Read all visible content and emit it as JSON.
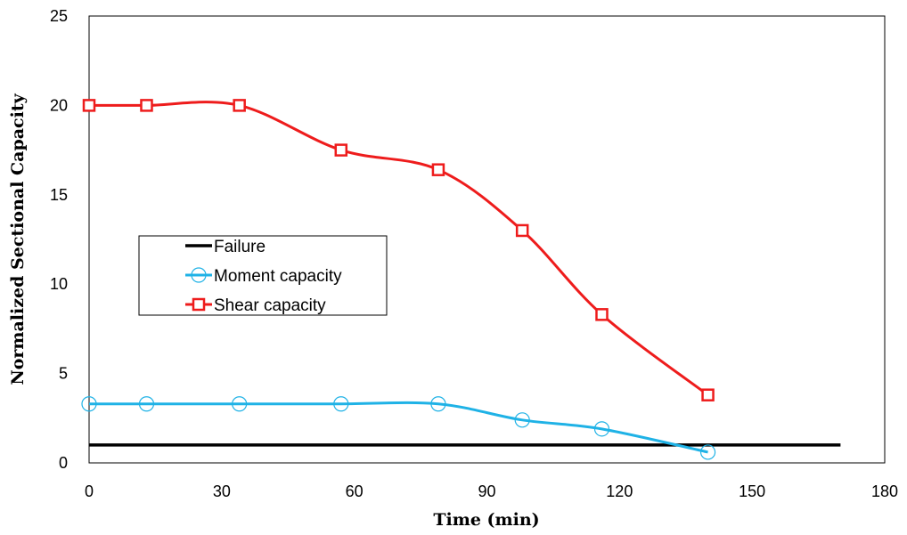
{
  "chart_data": {
    "type": "line",
    "title": "",
    "xlabel": "Time (min)",
    "ylabel": "Normalized Sectional Capacity",
    "xlim": [
      0,
      180
    ],
    "ylim": [
      0,
      25
    ],
    "xticks": [
      "0",
      "30",
      "60",
      "90",
      "120",
      "150",
      "180"
    ],
    "yticks": [
      "0",
      "5",
      "10",
      "15",
      "20",
      "25"
    ],
    "grid": false,
    "legend_position": "center-left",
    "series": [
      {
        "name": "Failure",
        "color": "#000000",
        "marker": "none",
        "smooth": false,
        "x": [
          0,
          170
        ],
        "y": [
          1,
          1
        ]
      },
      {
        "name": "Moment capacity",
        "color": "#1fb2e6",
        "marker": "circle",
        "smooth": true,
        "x": [
          0,
          13,
          34,
          57,
          79,
          98,
          116,
          140
        ],
        "y": [
          3.3,
          3.3,
          3.3,
          3.3,
          3.3,
          2.4,
          1.9,
          0.6
        ]
      },
      {
        "name": "Shear capacity",
        "color": "#ee1c1c",
        "marker": "square",
        "smooth": true,
        "x": [
          0,
          13,
          34,
          57,
          79,
          98,
          116,
          140
        ],
        "y": [
          20,
          20,
          20,
          17.5,
          16.4,
          13.0,
          8.3,
          3.8
        ]
      }
    ]
  }
}
